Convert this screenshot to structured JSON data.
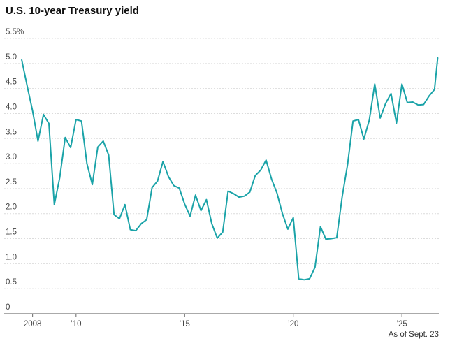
{
  "chart_data": {
    "type": "line",
    "title": "U.S. 10-year Treasury yield",
    "note": "As of Sept. 23",
    "xlabel": "",
    "ylabel": "",
    "ylim": [
      0,
      5.5
    ],
    "y_ticks": [
      {
        "value": 5.5,
        "label": "5.5%"
      },
      {
        "value": 5.0,
        "label": "5.0"
      },
      {
        "value": 4.5,
        "label": "4.5"
      },
      {
        "value": 4.0,
        "label": "4.0"
      },
      {
        "value": 3.5,
        "label": "3.5"
      },
      {
        "value": 3.0,
        "label": "3.0"
      },
      {
        "value": 2.5,
        "label": "2.5"
      },
      {
        "value": 2.0,
        "label": "2.0"
      },
      {
        "value": 1.5,
        "label": "1.5"
      },
      {
        "value": 1.0,
        "label": "1.0"
      },
      {
        "value": 0.5,
        "label": "0.5"
      },
      {
        "value": 0,
        "label": "0"
      }
    ],
    "x_ticks": [
      {
        "value": 2008,
        "label": "2008"
      },
      {
        "value": 2010,
        "label": "’10"
      },
      {
        "value": 2015,
        "label": "’15"
      },
      {
        "value": 2020,
        "label": "’20"
      },
      {
        "value": 2025,
        "label": "’25"
      }
    ],
    "xlim": [
      2007.4,
      2026.7
    ],
    "grid": true,
    "color": "#1aa3a8",
    "series": [
      {
        "x": [
          2007.5,
          2007.75,
          2008.0,
          2008.25,
          2008.5,
          2008.75,
          2009.0,
          2009.25,
          2009.5,
          2009.75,
          2010.0,
          2010.25,
          2010.5,
          2010.75,
          2011.0,
          2011.25,
          2011.5,
          2011.75,
          2012.0,
          2012.25,
          2012.5,
          2012.75,
          2013.0,
          2013.25,
          2013.5,
          2013.75,
          2014.0,
          2014.25,
          2014.5,
          2014.75,
          2015.0,
          2015.25,
          2015.5,
          2015.75,
          2016.0,
          2016.25,
          2016.5,
          2016.75,
          2017.0,
          2017.25,
          2017.5,
          2017.75,
          2018.0,
          2018.25,
          2018.5,
          2018.75,
          2019.0,
          2019.25,
          2019.5,
          2019.75,
          2020.0,
          2020.25,
          2020.5,
          2020.75,
          2021.0,
          2021.25,
          2021.5,
          2021.75,
          2022.0,
          2022.25,
          2022.5,
          2022.75,
          2023.0,
          2023.25,
          2023.5,
          2023.75,
          2024.0,
          2024.25,
          2024.5,
          2024.75,
          2025.0,
          2025.25,
          2025.5,
          2025.75,
          2026.0,
          2026.25,
          2026.5,
          2026.65
        ],
        "values": [
          5.07,
          4.55,
          4.05,
          3.45,
          3.98,
          3.8,
          2.18,
          2.72,
          3.52,
          3.32,
          3.88,
          3.85,
          3.0,
          2.58,
          3.33,
          3.45,
          3.17,
          1.98,
          1.9,
          2.18,
          1.68,
          1.66,
          1.8,
          1.88,
          2.52,
          2.65,
          3.04,
          2.74,
          2.56,
          2.51,
          2.19,
          1.95,
          2.37,
          2.06,
          2.28,
          1.8,
          1.51,
          1.63,
          2.45,
          2.4,
          2.33,
          2.35,
          2.43,
          2.76,
          2.87,
          3.07,
          2.69,
          2.41,
          2.0,
          1.69,
          1.92,
          0.7,
          0.68,
          0.7,
          0.93,
          1.74,
          1.49,
          1.5,
          1.52,
          2.34,
          2.98,
          3.85,
          3.88,
          3.49,
          3.87,
          4.59,
          3.91,
          4.2,
          4.4,
          3.81,
          4.59,
          4.22,
          4.23,
          4.17,
          4.18,
          4.35,
          4.48,
          5.11
        ]
      }
    ]
  }
}
